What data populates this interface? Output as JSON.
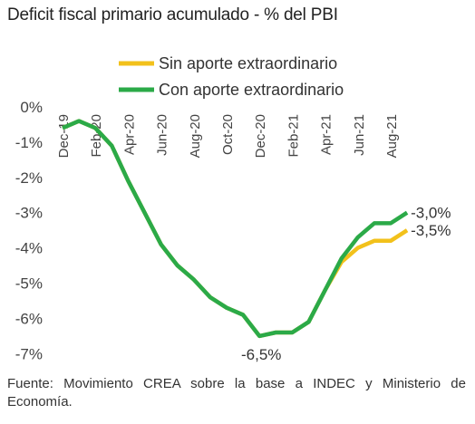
{
  "chart_data": {
    "type": "line",
    "title": "Deficit fiscal primario acumulado  - % del PBI",
    "categories": [
      "Dec-19",
      "Jan-20",
      "Feb-20",
      "Mar-20",
      "Apr-20",
      "May-20",
      "Jun-20",
      "Jul-20",
      "Aug-20",
      "Sep-20",
      "Oct-20",
      "Nov-20",
      "Dec-20",
      "Jan-21",
      "Feb-21",
      "Mar-21",
      "Apr-21",
      "May-21",
      "Jun-21",
      "Jul-21",
      "Aug-21",
      "Sep-21"
    ],
    "tick_labels": [
      "Dec-19",
      "Feb-20",
      "Apr-20",
      "Jun-20",
      "Aug-20",
      "Oct-20",
      "Dec-20",
      "Feb-21",
      "Apr-21",
      "Jun-21",
      "Aug-21"
    ],
    "y_tick_labels": [
      "0%",
      "-1%",
      "-2%",
      "-3%",
      "-4%",
      "-5%",
      "-6%",
      "-7%"
    ],
    "ylim": [
      -7,
      0
    ],
    "series": [
      {
        "name": "Sin aporte extraordinario",
        "color": "#F2C11B",
        "values": [
          -0.6,
          -0.4,
          -0.6,
          -1.1,
          -2.1,
          -3.0,
          -3.9,
          -4.5,
          -4.9,
          -5.4,
          -5.7,
          -5.9,
          -6.5,
          -6.4,
          -6.4,
          -6.1,
          -5.2,
          -4.4,
          -4.0,
          -3.8,
          -3.8,
          -3.5
        ]
      },
      {
        "name": "Con aporte extraordinario",
        "color": "#2BAA48",
        "values": [
          -0.6,
          -0.4,
          -0.6,
          -1.1,
          -2.1,
          -3.0,
          -3.9,
          -4.5,
          -4.9,
          -5.4,
          -5.7,
          -5.9,
          -6.5,
          -6.4,
          -6.4,
          -6.1,
          -5.2,
          -4.3,
          -3.7,
          -3.3,
          -3.3,
          -3.0
        ]
      }
    ],
    "annotations": {
      "min_label": "-6,5%",
      "end_con": "-3,0%",
      "end_sin": "-3,5%"
    },
    "legend_position": "top",
    "grid": false
  },
  "source_note": "Fuente: Movimiento CREA sobre la base a INDEC y Ministerio de Economía."
}
